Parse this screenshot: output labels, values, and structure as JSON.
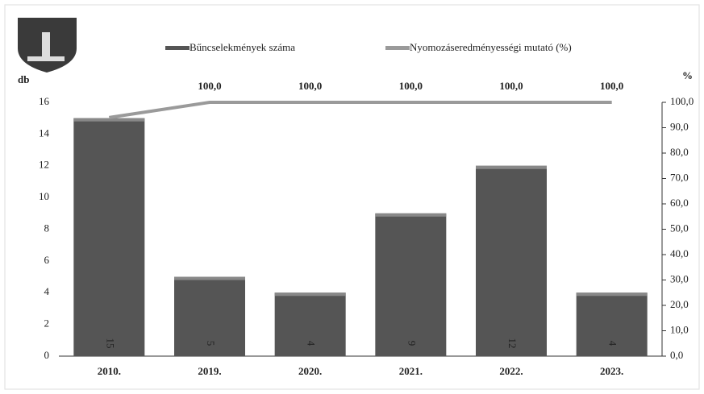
{
  "chart_data": {
    "type": "bar",
    "categories": [
      "2010.",
      "2019.",
      "2020.",
      "2021.",
      "2022.",
      "2023."
    ],
    "ylabel": "db",
    "y2label": "%",
    "ylim": [
      0,
      16
    ],
    "yticks": [
      0,
      2,
      4,
      6,
      8,
      10,
      12,
      14,
      16
    ],
    "y2lim": [
      0,
      100
    ],
    "y2ticks": [
      {
        "value": 0,
        "label": "0,0"
      },
      {
        "value": 10,
        "label": "10,0"
      },
      {
        "value": 20,
        "label": "20,0"
      },
      {
        "value": 30,
        "label": "30,0"
      },
      {
        "value": 40,
        "label": "40,0"
      },
      {
        "value": 50,
        "label": "50,0"
      },
      {
        "value": 60,
        "label": "60,0"
      },
      {
        "value": 70,
        "label": "70,0"
      },
      {
        "value": 80,
        "label": "80,0"
      },
      {
        "value": 90,
        "label": "90,0"
      },
      {
        "value": 100,
        "label": "100,0"
      }
    ],
    "series": [
      {
        "name": "Bűncselekmények száma",
        "type": "bar",
        "color": "#555555",
        "values": [
          15,
          5,
          4,
          9,
          12,
          4
        ]
      },
      {
        "name": "Nyomozáseredményességi mutató (%)",
        "type": "line",
        "axis": "y2",
        "color": "#9a9a9a",
        "values": [
          94,
          100,
          100,
          100,
          100,
          100
        ],
        "value_labels": [
          null,
          "100,0",
          "100,0",
          "100,0",
          "100,0",
          "100,0"
        ]
      }
    ]
  }
}
